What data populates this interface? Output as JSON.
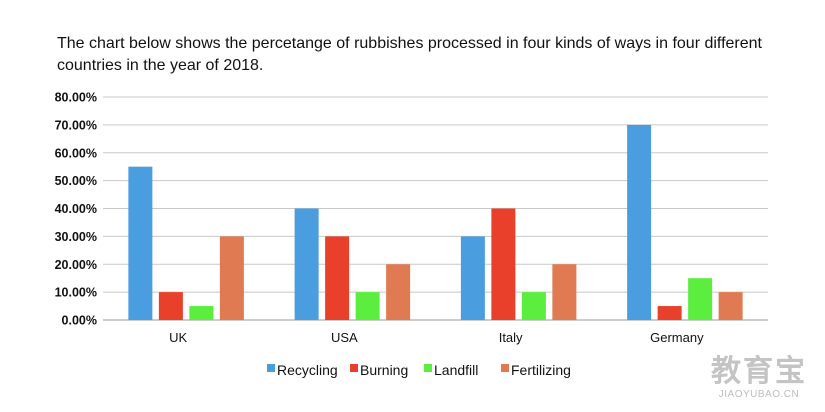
{
  "chart_data": {
    "type": "bar",
    "title": "The chart below shows the percetange of rubbishes processed in four kinds of ways in four different countries in the year of 2018.",
    "xlabel": "",
    "ylabel": "",
    "categories": [
      "UK",
      "USA",
      "Italy",
      "Germany"
    ],
    "series": [
      {
        "name": "Recycling",
        "color": "#4a9ee0",
        "values": [
          55,
          40,
          30,
          70
        ]
      },
      {
        "name": "Burning",
        "color": "#e8402a",
        "values": [
          10,
          30,
          40,
          5
        ]
      },
      {
        "name": "Landfill",
        "color": "#5cee3f",
        "values": [
          5,
          10,
          10,
          15
        ]
      },
      {
        "name": "Fertilizing",
        "color": "#e07a52",
        "values": [
          30,
          20,
          20,
          10
        ]
      }
    ],
    "ylim": [
      0,
      80
    ],
    "yticks": [
      "0.00%",
      "10.00%",
      "20.00%",
      "30.00%",
      "40.00%",
      "50.00%",
      "60.00%",
      "70.00%",
      "80.00%"
    ],
    "grid": true,
    "legend_position": "bottom"
  },
  "watermark": {
    "logo": "教育宝",
    "url": "JIAOYUBAO.CN"
  }
}
